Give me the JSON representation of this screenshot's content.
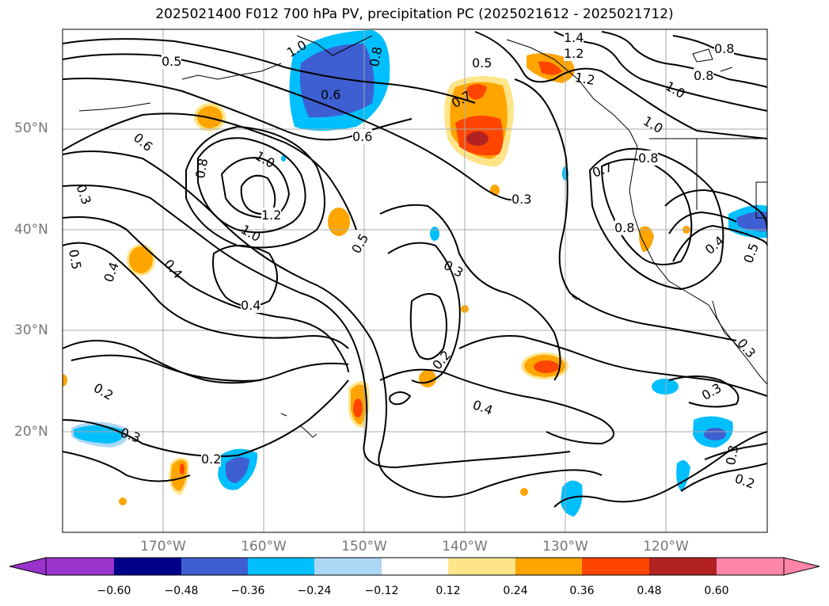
{
  "title": "2025021400 F012 700 hPa PV, precipitation PC (2025021612 - 2025021712)",
  "lat_labels": [
    "50°N",
    "40°N",
    "30°N",
    "20°N"
  ],
  "lon_labels": [
    "170°W",
    "160°W",
    "150°W",
    "140°W",
    "130°W",
    "120°W"
  ],
  "contour_labels": [
    "0.5",
    "0.6",
    "0.6",
    "0.8",
    "1.0",
    "1.2",
    "1.4",
    "1.2",
    "0.5",
    "0.7",
    "0.3",
    "0.7",
    "0.8",
    "1.0",
    "0.8",
    "1.0",
    "0.8",
    "0.6",
    "0.3",
    "0.5",
    "0.4",
    "0.4",
    "0.8",
    "1.0",
    "1.2",
    "1.0",
    "0.5",
    "0.3",
    "0.4",
    "0.2",
    "0.4",
    "0.2",
    "0.3",
    "0.2",
    "0.3",
    "0.2",
    "0.3",
    "0.8",
    "0.4",
    "0.5",
    "0.3"
  ],
  "colorbar": {
    "ticks": [
      "−0.60",
      "−0.48",
      "−0.36",
      "−0.24",
      "−0.12",
      "0.12",
      "0.24",
      "0.36",
      "0.48",
      "0.60"
    ],
    "colors": [
      "#9a33cc",
      "#00008b",
      "#3e5fd1",
      "#00bfff",
      "#add8f5",
      "#ffffff",
      "#ffe58a",
      "#ffa500",
      "#ff4500",
      "#b22222",
      "#ff85a8"
    ]
  }
}
